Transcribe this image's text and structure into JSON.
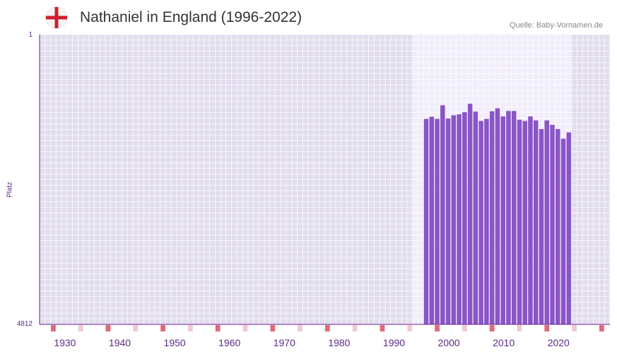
{
  "header": {
    "title": "Nathaniel in England (1996-2022)",
    "source": "Quelle: Baby-Vornamen.de",
    "flag_icon": "england-flag-icon"
  },
  "colors": {
    "bar": "#8a55c6",
    "axis": "#6a1e8a",
    "text": "#5b2a86",
    "marker_strong": "#e06a7a",
    "marker_light": "#f2c9d2"
  },
  "chart_data": {
    "type": "bar",
    "title": "Nathaniel in England (1996-2022)",
    "xlabel": "",
    "ylabel": "Platz",
    "y_top_label": "1",
    "y_bottom_label": "4812",
    "ylim": [
      1,
      4812
    ],
    "y_inverted": true,
    "xlim": [
      1926,
      2029
    ],
    "x_ticks": [
      1930,
      1940,
      1950,
      1960,
      1970,
      1980,
      1990,
      2000,
      2010,
      2020
    ],
    "highlight_range": [
      1996,
      2022
    ],
    "years": [
      1996,
      1997,
      1998,
      1999,
      2000,
      2001,
      2002,
      2003,
      2004,
      2005,
      2006,
      2007,
      2008,
      2009,
      2010,
      2011,
      2012,
      2013,
      2014,
      2015,
      2016,
      2017,
      2018,
      2019,
      2020,
      2021,
      2022
    ],
    "values": [
      1400,
      1365,
      1400,
      1175,
      1395,
      1340,
      1325,
      1290,
      1150,
      1280,
      1435,
      1400,
      1275,
      1225,
      1360,
      1270,
      1270,
      1415,
      1435,
      1360,
      1425,
      1570,
      1425,
      1500,
      1570,
      1730,
      1625
    ]
  }
}
